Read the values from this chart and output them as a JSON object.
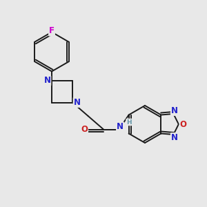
{
  "background_color": "#e8e8e8",
  "bond_color": "#1a1a1a",
  "nitrogen_color": "#2222cc",
  "oxygen_color": "#cc2222",
  "fluorine_color": "#cc00cc",
  "hydrogen_color": "#6699aa",
  "figsize": [
    3.0,
    3.0
  ],
  "dpi": 100,
  "xlim": [
    0,
    10
  ],
  "ylim": [
    0,
    10
  ]
}
